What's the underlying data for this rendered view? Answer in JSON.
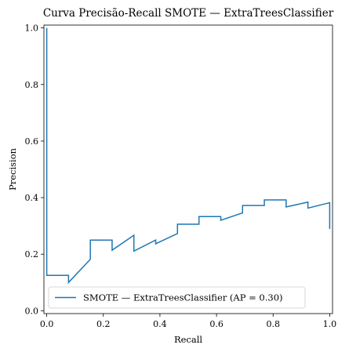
{
  "chart_data": {
    "type": "line",
    "title": "Curva Precisão-Recall SMOTE — ExtraTreesClassifier",
    "xlabel": "Recall",
    "ylabel": "Precision",
    "xlim": [
      -0.01,
      1.01
    ],
    "ylim": [
      -0.01,
      1.01
    ],
    "x_ticks": [
      {
        "value": 0.0,
        "label": "0.0"
      },
      {
        "value": 0.2,
        "label": "0.2"
      },
      {
        "value": 0.4,
        "label": "0.4"
      },
      {
        "value": 0.6,
        "label": "0.6"
      },
      {
        "value": 0.8,
        "label": "0.8"
      },
      {
        "value": 1.0,
        "label": "1.0"
      }
    ],
    "y_ticks": [
      {
        "value": 0.0,
        "label": "0.0"
      },
      {
        "value": 0.2,
        "label": "0.2"
      },
      {
        "value": 0.4,
        "label": "0.4"
      },
      {
        "value": 0.6,
        "label": "0.6"
      },
      {
        "value": 0.8,
        "label": "0.8"
      },
      {
        "value": 1.0,
        "label": "1.0"
      }
    ],
    "grid": false,
    "legend_position": "lower-left",
    "series": [
      {
        "name": "SMOTE — ExtraTreesClassifier (AP = 0.30)",
        "color": "#1f77b4",
        "recall": [
          1.0,
          1.0,
          0.923,
          0.923,
          0.846,
          0.846,
          0.769,
          0.769,
          0.692,
          0.692,
          0.615,
          0.615,
          0.538,
          0.538,
          0.462,
          0.462,
          0.385,
          0.385,
          0.308,
          0.308,
          0.231,
          0.231,
          0.154,
          0.154,
          0.077,
          0.077,
          0.0,
          0.0
        ],
        "precision": [
          0.289,
          0.382,
          0.363,
          0.384,
          0.367,
          0.392,
          0.392,
          0.372,
          0.372,
          0.346,
          0.32,
          0.333,
          0.333,
          0.306,
          0.306,
          0.273,
          0.237,
          0.25,
          0.211,
          0.267,
          0.214,
          0.25,
          0.25,
          0.182,
          0.1,
          0.125,
          0.125,
          1.0
        ]
      }
    ]
  }
}
